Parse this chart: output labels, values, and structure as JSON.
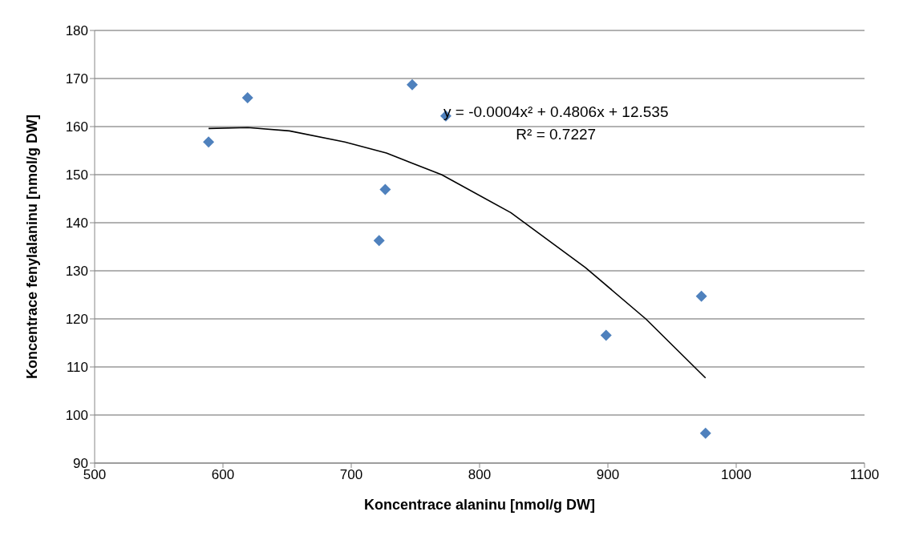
{
  "chart_data": {
    "type": "scatter",
    "xlabel": "Koncentrace alaninu [nmol/g DW]",
    "ylabel": "Koncentrace fenylalaninu [nmol/g DW]",
    "series": [
      {
        "color": "#4f81bd",
        "marker": "diamond",
        "x": [
          588.8,
          619.2,
          747.5,
          773.7,
          726.5,
          721.7,
          898.6,
          972.9,
          976.1
        ],
        "values": [
          156.8,
          166.0,
          168.7,
          162.2,
          146.9,
          136.3,
          116.6,
          124.7,
          96.2
        ]
      },
      {
        "type": "line",
        "color": "#000000",
        "marker": "none",
        "line_style": "solid",
        "x": [
          588.8,
          619.5,
          651.8,
          695,
          727.4,
          770.4,
          824.3,
          882.4,
          929.5,
          976.1
        ],
        "values": [
          159.6,
          159.8,
          159.1,
          156.8,
          154.5,
          150,
          142.1,
          130.7,
          120,
          107.7
        ]
      }
    ],
    "xlim": [
      500,
      1100
    ],
    "xticks": [
      500,
      600,
      700,
      800,
      900,
      1000,
      1100
    ],
    "ylim": [
      90,
      180
    ],
    "yticks": [
      90,
      100,
      110,
      120,
      130,
      140,
      150,
      160,
      170,
      180
    ],
    "grid": "y",
    "annotations": [
      "y = -0.0004x² + 0.4806x + 12.535",
      "R² = 0.7227"
    ]
  }
}
